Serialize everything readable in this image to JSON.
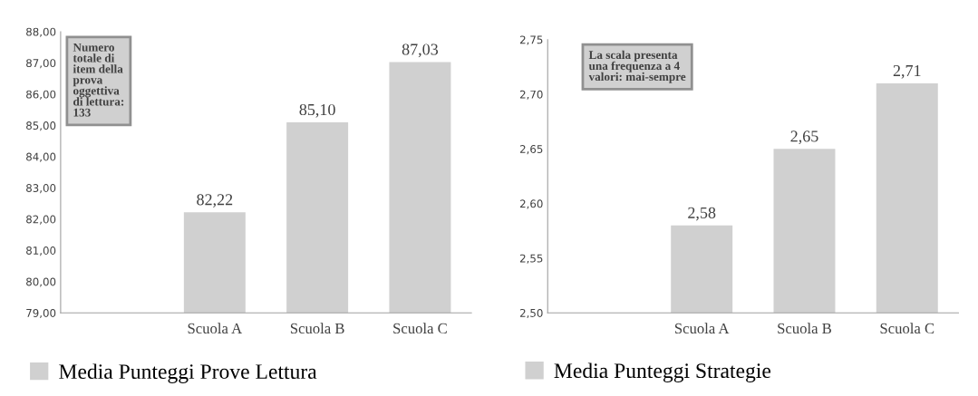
{
  "chart_data": [
    {
      "type": "bar",
      "categories": [
        null,
        "Scuola A",
        "Scuola B",
        "Scuola C"
      ],
      "series": [
        {
          "name": "Media Punteggi Prove Lettura",
          "color": "#d0d0d0",
          "values": [
            null,
            82.22,
            85.1,
            87.03
          ],
          "value_labels": [
            null,
            "82,22",
            "85,10",
            "87,03"
          ]
        }
      ],
      "ylim": [
        79,
        88
      ],
      "yticks": [
        {
          "value": 79,
          "label": "79,00"
        },
        {
          "value": 80,
          "label": "80,00"
        },
        {
          "value": 81,
          "label": "81,00"
        },
        {
          "value": 82,
          "label": "82,00"
        },
        {
          "value": 83,
          "label": "83,00"
        },
        {
          "value": 84,
          "label": "84,00"
        },
        {
          "value": 85,
          "label": "85,00"
        },
        {
          "value": 86,
          "label": "86,00"
        },
        {
          "value": 87,
          "label": "87,00"
        },
        {
          "value": 88,
          "label": "88,00"
        }
      ],
      "annotations": [
        "Numero\ntotale di\nitem della\nprova\noggettiva\ndi lettura:\n133"
      ],
      "legend": "bottom",
      "grid": false
    },
    {
      "type": "bar",
      "categories": [
        null,
        "Scuola A",
        "Scuola B",
        "Scuola C"
      ],
      "series": [
        {
          "name": "Media Punteggi Strategie",
          "color": "#d0d0d0",
          "values": [
            null,
            2.58,
            2.65,
            2.71
          ],
          "value_labels": [
            null,
            "2,58",
            "2,65",
            "2,71"
          ]
        }
      ],
      "ylim": [
        2.5,
        2.75
      ],
      "yticks": [
        {
          "value": 2.5,
          "label": "2,50"
        },
        {
          "value": 2.55,
          "label": "2,55"
        },
        {
          "value": 2.6,
          "label": "2,60"
        },
        {
          "value": 2.65,
          "label": "2,65"
        },
        {
          "value": 2.7,
          "label": "2,70"
        },
        {
          "value": 2.75,
          "label": "2,75"
        }
      ],
      "annotations": [
        "La scala presenta\nuna frequenza a 4\nvalori: mai-sempre"
      ],
      "legend": "bottom",
      "grid": false
    }
  ]
}
